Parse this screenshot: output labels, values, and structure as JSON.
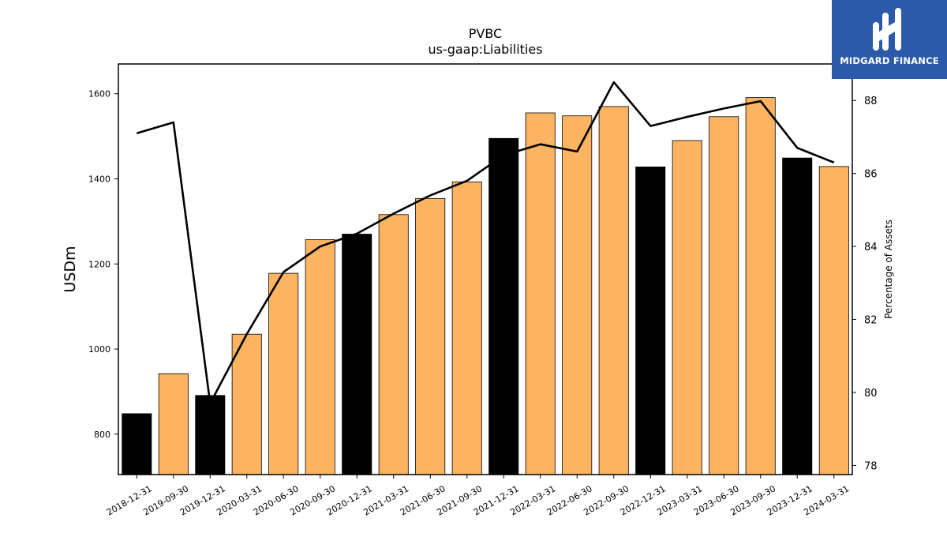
{
  "chart_data": {
    "type": "bar",
    "title": "PVBC",
    "subtitle": "us-gaap:Liabilities",
    "ylabel": "USDm",
    "y2label": "Percentage of Assets",
    "ylim": [
      705,
      1670
    ],
    "y2lim": [
      77.75,
      89.0
    ],
    "yticks": [
      800,
      1000,
      1200,
      1400,
      1600
    ],
    "y2ticks": [
      78,
      80,
      82,
      84,
      86,
      88
    ],
    "categories": [
      "2018-12-31",
      "2019-09-30",
      "2019-12-31",
      "2020-03-31",
      "2020-06-30",
      "2020-09-30",
      "2020-12-31",
      "2021-03-31",
      "2021-06-30",
      "2021-09-30",
      "2021-12-31",
      "2022-03-31",
      "2022-06-30",
      "2022-09-30",
      "2022-12-31",
      "2023-03-31",
      "2023-06-30",
      "2023-09-30",
      "2023-12-31",
      "2024-03-31"
    ],
    "series": [
      {
        "type": "bar",
        "values": [
          848,
          942,
          891,
          1035,
          1178,
          1257,
          1270,
          1316,
          1354,
          1393,
          1495,
          1555,
          1548,
          1570,
          1428,
          1490,
          1546,
          1591,
          1449,
          1429
        ],
        "year_end": [
          true,
          false,
          true,
          false,
          false,
          false,
          true,
          false,
          false,
          false,
          true,
          false,
          false,
          false,
          true,
          false,
          false,
          false,
          true,
          false
        ]
      },
      {
        "type": "line",
        "axis": "right",
        "values": [
          87.1,
          87.4,
          79.7,
          81.6,
          83.3,
          84.0,
          84.35,
          84.9,
          85.4,
          85.8,
          86.5,
          86.8,
          86.6,
          88.5,
          87.3,
          87.55,
          87.78,
          87.98,
          86.7,
          86.3
        ]
      }
    ],
    "colors": {
      "bar_quarter": "#fdb462",
      "bar_year_end": "#000000",
      "line": "#000000",
      "bar_edge": "#000000"
    },
    "grid": false
  },
  "logo": {
    "text": "MIDGARD FINANCE",
    "icon": "midgard-logo-icon"
  }
}
